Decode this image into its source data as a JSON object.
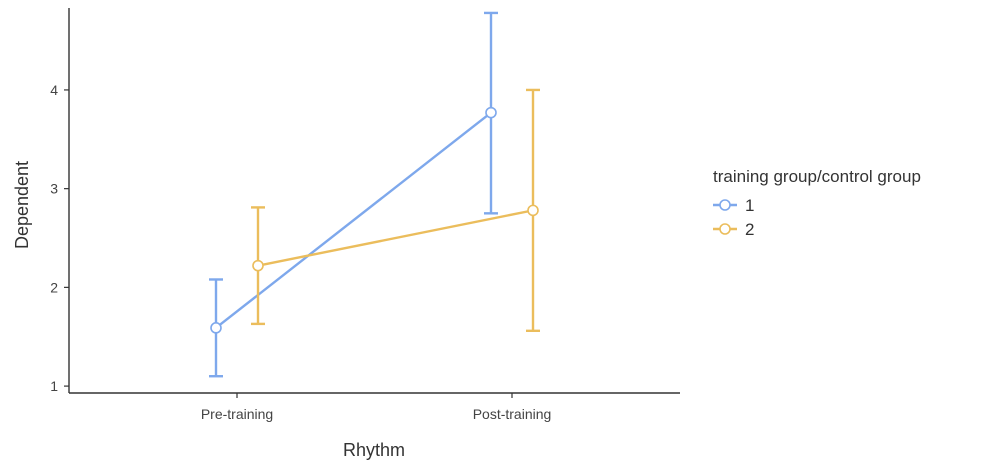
{
  "chart_data": {
    "type": "line",
    "xlabel": "Rhythm",
    "ylabel": "Dependent",
    "categories": [
      "Pre-training",
      "Post-training"
    ],
    "ylim": [
      0.93,
      4.83
    ],
    "yticks": [
      1,
      2,
      3,
      4
    ],
    "grid": false,
    "legend": {
      "title": "training group/control group",
      "position": "right"
    },
    "series": [
      {
        "name": "1",
        "color": "#7ea8ec",
        "values": [
          1.59,
          3.77
        ],
        "error_lower": [
          1.1,
          2.75
        ],
        "error_upper": [
          2.08,
          4.78
        ]
      },
      {
        "name": "2",
        "color": "#ebbd5c",
        "values": [
          2.22,
          2.78
        ],
        "error_lower": [
          1.63,
          1.56
        ],
        "error_upper": [
          2.81,
          4.0
        ]
      }
    ]
  }
}
